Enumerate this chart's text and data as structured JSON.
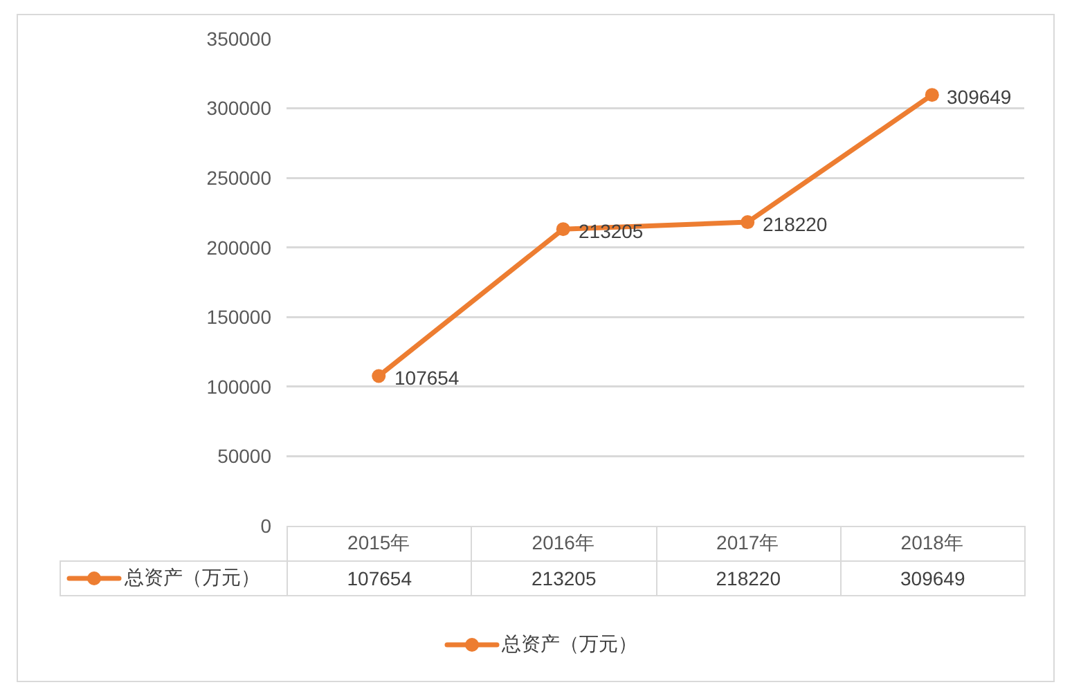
{
  "chart_data": {
    "type": "line",
    "categories": [
      "2015年",
      "2016年",
      "2017年",
      "2018年"
    ],
    "series": [
      {
        "name": "总资产（万元）",
        "color": "#ed7d31",
        "values": [
          107654,
          213205,
          218220,
          309649
        ]
      }
    ],
    "ylim": [
      0,
      350000
    ],
    "yticks": [
      0,
      50000,
      100000,
      150000,
      200000,
      250000,
      300000,
      350000
    ],
    "annotations": [
      {
        "text": "107654",
        "x": "2015年",
        "y": 107654
      },
      {
        "text": "213205",
        "x": "2016年",
        "y": 213205
      },
      {
        "text": "218220",
        "x": "2017年",
        "y": 218220
      },
      {
        "text": "309649",
        "x": "2018年",
        "y": 309649
      }
    ],
    "grid": "y",
    "legend": "bottom",
    "marker": "circle",
    "line_style": "solid",
    "data_labels": true
  }
}
